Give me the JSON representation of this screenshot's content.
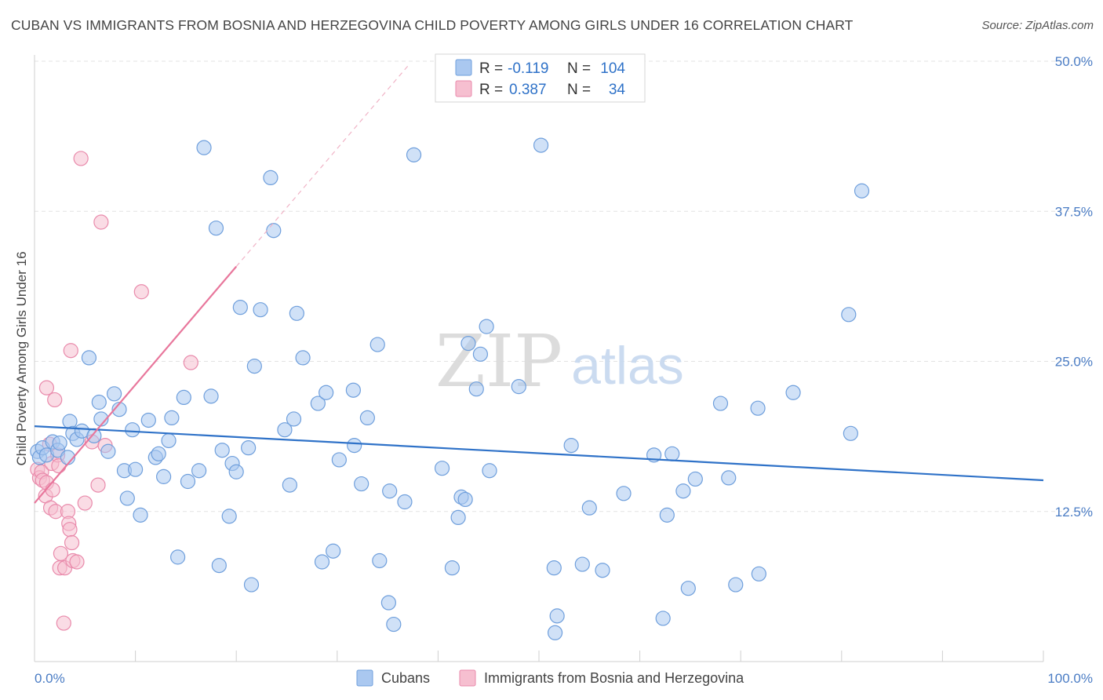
{
  "title": "CUBAN VS IMMIGRANTS FROM BOSNIA AND HERZEGOVINA CHILD POVERTY AMONG GIRLS UNDER 16 CORRELATION CHART",
  "source": "Source: ZipAtlas.com",
  "watermark": {
    "zip": "ZIP",
    "atlas": "atlas"
  },
  "colors": {
    "cubans_fill": "#aac8f0",
    "cubans_stroke": "#6f9fdc",
    "cubans_line": "#2f72c8",
    "bosnia_fill": "#f6bfd0",
    "bosnia_stroke": "#e98aab",
    "bosnia_line": "#e8779c",
    "tick_text": "#4a7cc4",
    "grid": "#e3e3e3"
  },
  "legend": {
    "r_label": "R =",
    "n_label": "N =",
    "rows": [
      {
        "r": "-0.119",
        "n": "104"
      },
      {
        "r": "0.387",
        "n": "34"
      }
    ]
  },
  "chart_data": {
    "type": "scatter",
    "xlabel": "",
    "ylabel": "Child Poverty Among Girls Under 16",
    "xlim": [
      0,
      100
    ],
    "ylim": [
      0,
      50
    ],
    "x_tick_labels": [
      "0.0%",
      "100.0%"
    ],
    "y_ticks": [
      12.5,
      25.0,
      37.5,
      50.0
    ],
    "y_tick_labels": [
      "12.5%",
      "25.0%",
      "37.5%",
      "50.0%"
    ],
    "grid": true,
    "legend_position": "top-center",
    "series": [
      {
        "name": "Cubans",
        "trend": {
          "x0": 0,
          "y0": 19.6,
          "x1": 100,
          "y1": 15.1
        },
        "points": [
          [
            0.3,
            17.5
          ],
          [
            0.5,
            17.0
          ],
          [
            0.8,
            17.8
          ],
          [
            1.2,
            17.2
          ],
          [
            1.8,
            18.3
          ],
          [
            2.3,
            17.6
          ],
          [
            2.5,
            18.2
          ],
          [
            3.3,
            17.0
          ],
          [
            3.5,
            20.0
          ],
          [
            3.8,
            19.0
          ],
          [
            4.2,
            18.5
          ],
          [
            4.7,
            19.2
          ],
          [
            5.4,
            25.3
          ],
          [
            5.9,
            18.8
          ],
          [
            6.4,
            21.6
          ],
          [
            6.6,
            20.2
          ],
          [
            7.3,
            17.5
          ],
          [
            7.9,
            22.3
          ],
          [
            8.4,
            21.0
          ],
          [
            8.9,
            15.9
          ],
          [
            9.2,
            13.6
          ],
          [
            9.7,
            19.3
          ],
          [
            10.0,
            16.0
          ],
          [
            10.5,
            12.2
          ],
          [
            11.3,
            20.1
          ],
          [
            12.0,
            17.0
          ],
          [
            12.3,
            17.3
          ],
          [
            12.8,
            15.4
          ],
          [
            13.3,
            18.4
          ],
          [
            13.6,
            20.3
          ],
          [
            14.2,
            8.7
          ],
          [
            14.8,
            22.0
          ],
          [
            15.2,
            15.0
          ],
          [
            16.3,
            15.9
          ],
          [
            16.8,
            42.8
          ],
          [
            17.5,
            22.1
          ],
          [
            18.0,
            36.1
          ],
          [
            18.3,
            8.0
          ],
          [
            18.6,
            17.6
          ],
          [
            19.3,
            12.1
          ],
          [
            19.6,
            16.5
          ],
          [
            20.0,
            15.8
          ],
          [
            20.4,
            29.5
          ],
          [
            21.2,
            17.8
          ],
          [
            21.5,
            6.4
          ],
          [
            21.8,
            24.6
          ],
          [
            22.4,
            29.3
          ],
          [
            23.4,
            40.3
          ],
          [
            23.7,
            35.9
          ],
          [
            24.8,
            19.3
          ],
          [
            25.3,
            14.7
          ],
          [
            25.7,
            20.2
          ],
          [
            26.0,
            29.0
          ],
          [
            26.6,
            25.3
          ],
          [
            28.1,
            21.5
          ],
          [
            28.5,
            8.3
          ],
          [
            28.9,
            22.4
          ],
          [
            29.6,
            9.2
          ],
          [
            30.2,
            16.8
          ],
          [
            31.6,
            22.6
          ],
          [
            31.7,
            18.0
          ],
          [
            32.4,
            14.8
          ],
          [
            33.0,
            20.3
          ],
          [
            34.0,
            26.4
          ],
          [
            34.2,
            8.4
          ],
          [
            35.1,
            4.9
          ],
          [
            35.2,
            14.2
          ],
          [
            35.6,
            3.1
          ],
          [
            36.7,
            13.3
          ],
          [
            37.6,
            42.2
          ],
          [
            40.4,
            16.1
          ],
          [
            41.4,
            7.8
          ],
          [
            42.0,
            12.0
          ],
          [
            42.3,
            13.7
          ],
          [
            42.7,
            13.5
          ],
          [
            43.0,
            26.5
          ],
          [
            43.8,
            22.7
          ],
          [
            44.2,
            25.6
          ],
          [
            44.8,
            27.9
          ],
          [
            45.1,
            15.9
          ],
          [
            48.0,
            22.9
          ],
          [
            50.2,
            43.0
          ],
          [
            51.5,
            7.8
          ],
          [
            51.8,
            3.8
          ],
          [
            51.6,
            2.4
          ],
          [
            53.2,
            18.0
          ],
          [
            54.3,
            8.1
          ],
          [
            55.0,
            12.8
          ],
          [
            56.3,
            7.6
          ],
          [
            58.4,
            14.0
          ],
          [
            61.4,
            17.2
          ],
          [
            62.3,
            3.6
          ],
          [
            62.7,
            12.2
          ],
          [
            63.2,
            17.3
          ],
          [
            64.3,
            14.2
          ],
          [
            64.8,
            6.1
          ],
          [
            65.5,
            15.2
          ],
          [
            68.0,
            21.5
          ],
          [
            68.8,
            15.3
          ],
          [
            69.5,
            6.4
          ],
          [
            71.8,
            7.3
          ],
          [
            71.7,
            21.1
          ],
          [
            75.2,
            22.4
          ],
          [
            80.7,
            28.9
          ],
          [
            80.9,
            19.0
          ],
          [
            82.0,
            39.2
          ]
        ]
      },
      {
        "name": "Immigrants from Bosnia and Herzegovina",
        "trend": {
          "x0": 0,
          "y0": 13.2,
          "x1": 20,
          "y1": 32.9
        },
        "trend_extension": {
          "x0": 20,
          "y0": 32.9,
          "x1": 37,
          "y1": 49.6
        },
        "points": [
          [
            0.3,
            16.0
          ],
          [
            0.5,
            15.3
          ],
          [
            0.7,
            15.8
          ],
          [
            0.8,
            15.1
          ],
          [
            1.1,
            13.8
          ],
          [
            1.2,
            14.9
          ],
          [
            1.2,
            22.8
          ],
          [
            1.5,
            18.1
          ],
          [
            1.6,
            12.8
          ],
          [
            1.7,
            16.5
          ],
          [
            1.8,
            14.3
          ],
          [
            2.0,
            21.8
          ],
          [
            2.1,
            12.5
          ],
          [
            2.3,
            17.2
          ],
          [
            2.4,
            16.3
          ],
          [
            2.5,
            7.8
          ],
          [
            2.6,
            9.0
          ],
          [
            3.0,
            7.8
          ],
          [
            2.9,
            3.2
          ],
          [
            3.3,
            12.5
          ],
          [
            3.4,
            11.5
          ],
          [
            3.5,
            11.0
          ],
          [
            3.7,
            9.9
          ],
          [
            3.8,
            8.4
          ],
          [
            4.2,
            8.3
          ],
          [
            3.6,
            25.9
          ],
          [
            5.0,
            13.2
          ],
          [
            4.6,
            41.9
          ],
          [
            5.7,
            18.3
          ],
          [
            6.3,
            14.7
          ],
          [
            6.6,
            36.6
          ],
          [
            7.0,
            18.0
          ],
          [
            10.6,
            30.8
          ],
          [
            15.5,
            24.9
          ]
        ]
      }
    ]
  }
}
